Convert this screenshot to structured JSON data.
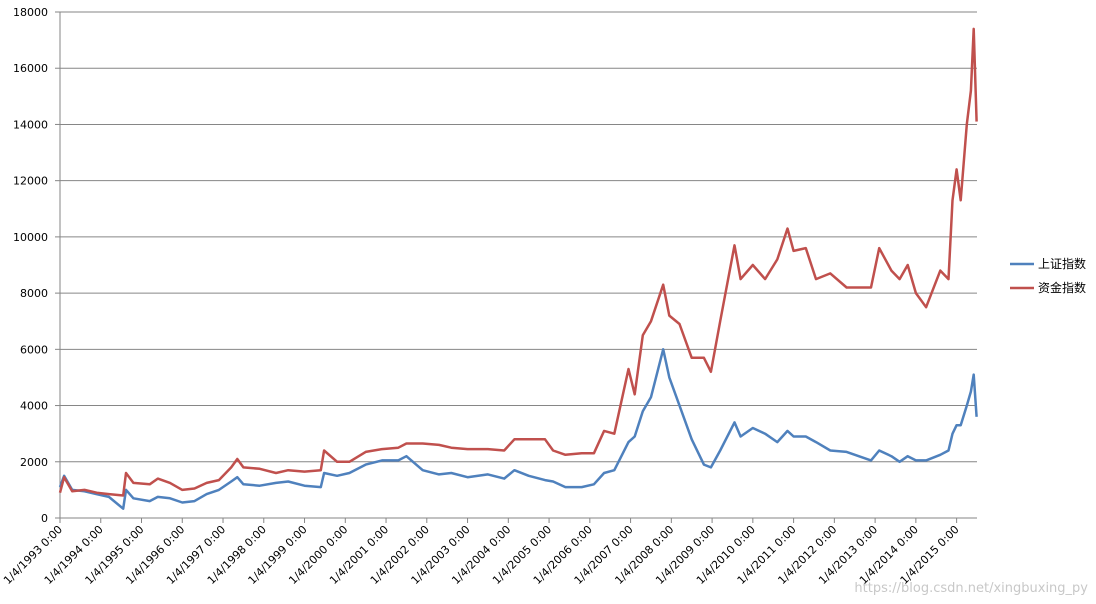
{
  "chart_data": {
    "type": "line",
    "x": [
      1993.0,
      1993.1,
      1993.3,
      1993.6,
      1993.9,
      1994.2,
      1994.55,
      1994.62,
      1994.8,
      1995.2,
      1995.4,
      1995.7,
      1996.0,
      1996.3,
      1996.6,
      1996.9,
      1997.2,
      1997.35,
      1997.5,
      1997.9,
      1998.3,
      1998.6,
      1999.0,
      1999.4,
      1999.48,
      1999.8,
      2000.1,
      2000.5,
      2000.9,
      2001.3,
      2001.5,
      2001.9,
      2002.3,
      2002.6,
      2003.0,
      2003.5,
      2003.9,
      2004.15,
      2004.5,
      2004.9,
      2005.1,
      2005.4,
      2005.8,
      2006.1,
      2006.35,
      2006.6,
      2006.95,
      2007.1,
      2007.3,
      2007.5,
      2007.8,
      2007.95,
      2008.2,
      2008.5,
      2008.8,
      2008.97,
      2009.2,
      2009.55,
      2009.7,
      2010.0,
      2010.3,
      2010.6,
      2010.85,
      2011.0,
      2011.3,
      2011.55,
      2011.9,
      2012.3,
      2012.9,
      2013.1,
      2013.4,
      2013.6,
      2013.8,
      2014.0,
      2014.25,
      2014.6,
      2014.8,
      2014.9,
      2015.0,
      2015.1,
      2015.25,
      2015.35,
      2015.42,
      2015.49
    ],
    "series": [
      {
        "name": "上证指数",
        "color": "#4f81bd",
        "values": [
          1100,
          1500,
          1000,
          950,
          850,
          750,
          330,
          1000,
          700,
          600,
          750,
          700,
          550,
          600,
          850,
          1000,
          1300,
          1450,
          1200,
          1150,
          1250,
          1300,
          1150,
          1100,
          1600,
          1500,
          1600,
          1900,
          2050,
          2050,
          2200,
          1700,
          1550,
          1600,
          1450,
          1550,
          1400,
          1700,
          1500,
          1350,
          1300,
          1100,
          1100,
          1200,
          1600,
          1700,
          2700,
          2900,
          3800,
          4300,
          6000,
          5000,
          4000,
          2800,
          1900,
          1800,
          2400,
          3400,
          2900,
          3200,
          3000,
          2700,
          3100,
          2900,
          2900,
          2700,
          2400,
          2350,
          2050,
          2400,
          2200,
          2000,
          2200,
          2050,
          2050,
          2250,
          2400,
          3000,
          3300,
          3300,
          4000,
          4500,
          5100,
          3600
        ]
      },
      {
        "name": "资金指数",
        "color": "#c0504d",
        "values": [
          900,
          1450,
          950,
          1000,
          900,
          850,
          800,
          1600,
          1250,
          1200,
          1400,
          1250,
          1000,
          1050,
          1250,
          1350,
          1800,
          2100,
          1800,
          1750,
          1600,
          1700,
          1650,
          1700,
          2400,
          2000,
          2000,
          2350,
          2450,
          2500,
          2650,
          2650,
          2600,
          2500,
          2450,
          2450,
          2400,
          2800,
          2800,
          2800,
          2400,
          2250,
          2300,
          2300,
          3100,
          3000,
          5300,
          4400,
          6500,
          7000,
          8300,
          7200,
          6900,
          5700,
          5700,
          5200,
          7000,
          9700,
          8500,
          9000,
          8500,
          9200,
          10300,
          9500,
          9600,
          8500,
          8700,
          8200,
          8200,
          9600,
          8800,
          8500,
          9000,
          8000,
          7500,
          8800,
          8500,
          11300,
          12400,
          11300,
          14000,
          15200,
          17400,
          14100
        ]
      }
    ],
    "xlim": [
      1993.0,
      2015.5
    ],
    "xticks": [
      {
        "value": 1993,
        "label": "1/4/1993 0:00"
      },
      {
        "value": 1994,
        "label": "1/4/1994 0:00"
      },
      {
        "value": 1995,
        "label": "1/4/1995 0:00"
      },
      {
        "value": 1996,
        "label": "1/4/1996 0:00"
      },
      {
        "value": 1997,
        "label": "1/4/1997 0:00"
      },
      {
        "value": 1998,
        "label": "1/4/1998 0:00"
      },
      {
        "value": 1999,
        "label": "1/4/1999 0:00"
      },
      {
        "value": 2000,
        "label": "1/4/2000 0:00"
      },
      {
        "value": 2001,
        "label": "1/4/2001 0:00"
      },
      {
        "value": 2002,
        "label": "1/4/2002 0:00"
      },
      {
        "value": 2003,
        "label": "1/4/2003 0:00"
      },
      {
        "value": 2004,
        "label": "1/4/2004 0:00"
      },
      {
        "value": 2005,
        "label": "1/4/2005 0:00"
      },
      {
        "value": 2006,
        "label": "1/4/2006 0:00"
      },
      {
        "value": 2007,
        "label": "1/4/2007 0:00"
      },
      {
        "value": 2008,
        "label": "1/4/2008 0:00"
      },
      {
        "value": 2009,
        "label": "1/4/2009 0:00"
      },
      {
        "value": 2010,
        "label": "1/4/2010 0:00"
      },
      {
        "value": 2011,
        "label": "1/4/2011 0:00"
      },
      {
        "value": 2012,
        "label": "1/4/2012 0:00"
      },
      {
        "value": 2013,
        "label": "1/4/2013 0:00"
      },
      {
        "value": 2014,
        "label": "1/4/2014 0:00"
      },
      {
        "value": 2015,
        "label": "1/4/2015 0:00"
      }
    ],
    "ylim": [
      0,
      18000
    ],
    "yticks": [
      0,
      2000,
      4000,
      6000,
      8000,
      10000,
      12000,
      14000,
      16000,
      18000
    ],
    "grid": true,
    "legend": "right",
    "watermark": "https://blog.csdn.net/xingbuxing_py"
  }
}
